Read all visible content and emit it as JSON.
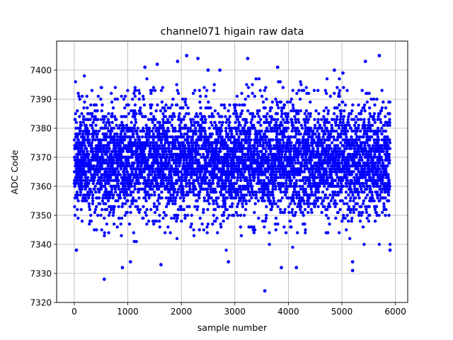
{
  "chart_data": {
    "type": "scatter",
    "title": "channel071 higain raw data",
    "xlabel": "sample number",
    "ylabel": "ADC Code",
    "xlim": [
      -330,
      6230
    ],
    "ylim": [
      7320,
      7410
    ],
    "xticks": [
      0,
      1000,
      2000,
      3000,
      4000,
      5000,
      6000
    ],
    "yticks": [
      7320,
      7330,
      7340,
      7350,
      7360,
      7370,
      7380,
      7390,
      7400
    ],
    "grid": true,
    "series": [
      {
        "color": "#0000ff",
        "marker": "circle",
        "n_points": 5900,
        "x_range": [
          0,
          5900
        ],
        "center": 7369,
        "spread_std": 9.5,
        "notable_points": [
          {
            "x": 40,
            "y": 7338
          },
          {
            "x": 560,
            "y": 7328
          },
          {
            "x": 900,
            "y": 7332
          },
          {
            "x": 1050,
            "y": 7334
          },
          {
            "x": 1320,
            "y": 7401
          },
          {
            "x": 1550,
            "y": 7402
          },
          {
            "x": 1620,
            "y": 7333
          },
          {
            "x": 1930,
            "y": 7403
          },
          {
            "x": 2100,
            "y": 7405
          },
          {
            "x": 2310,
            "y": 7404
          },
          {
            "x": 2500,
            "y": 7400
          },
          {
            "x": 2720,
            "y": 7400
          },
          {
            "x": 2880,
            "y": 7334
          },
          {
            "x": 3240,
            "y": 7404
          },
          {
            "x": 3560,
            "y": 7324
          },
          {
            "x": 3800,
            "y": 7401
          },
          {
            "x": 3870,
            "y": 7332
          },
          {
            "x": 4150,
            "y": 7332
          },
          {
            "x": 4860,
            "y": 7400
          },
          {
            "x": 5020,
            "y": 7399
          },
          {
            "x": 5200,
            "y": 7334
          },
          {
            "x": 5200,
            "y": 7331
          },
          {
            "x": 5440,
            "y": 7403
          },
          {
            "x": 5700,
            "y": 7405
          },
          {
            "x": 5900,
            "y": 7338
          }
        ]
      }
    ]
  }
}
